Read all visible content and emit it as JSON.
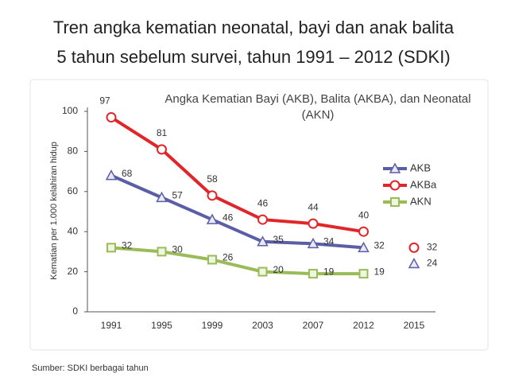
{
  "slide": {
    "title": [
      "Tren angka kematian neonatal, bayi dan anak balita",
      "5 tahun sebelum survei, tahun 1991 – 2012 (SDKI)"
    ],
    "source": "Sumber: SDKI berbagai tahun"
  },
  "chart_data": {
    "type": "line",
    "title": "Angka Kematian Bayi (AKB), Balita (AKBA), dan Neonatal (AKN)",
    "y_label": "Kematian per 1.000 kelahiran hidup",
    "categories": [
      "1991",
      "1995",
      "1999",
      "2003",
      "2007",
      "2012",
      "2015"
    ],
    "series": [
      {
        "name": "AKB",
        "color": "#5b5ea6",
        "marker": "triangle",
        "values": [
          68,
          57,
          46,
          35,
          34,
          32,
          null
        ]
      },
      {
        "name": "AKBa",
        "color": "#e0262a",
        "marker": "circle",
        "values": [
          97,
          81,
          58,
          46,
          44,
          40,
          null
        ]
      },
      {
        "name": "AKN",
        "color": "#9bbb59",
        "marker": "square",
        "values": [
          32,
          30,
          26,
          20,
          19,
          19,
          null
        ]
      }
    ],
    "targets": {
      "values": [
        32,
        24
      ],
      "markers": [
        "circle",
        "triangle"
      ],
      "colors": [
        "#e0262a",
        "#5b5ea6"
      ]
    },
    "ylim": [
      0,
      100
    ],
    "yticks": [
      0,
      20,
      40,
      60,
      80,
      100
    ],
    "grid": false,
    "legend": "right"
  }
}
